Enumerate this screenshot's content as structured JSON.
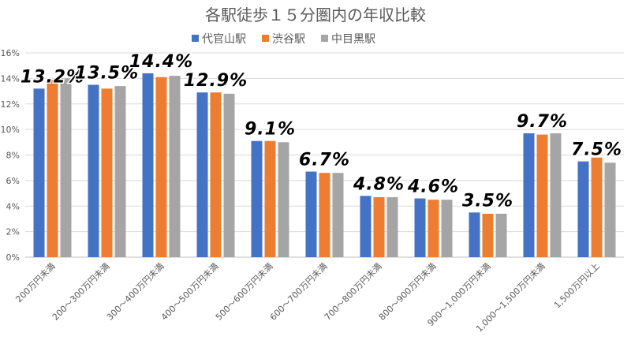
{
  "chart_data": {
    "type": "bar",
    "title": "各駅徒歩１５分圏内の年収比較",
    "xlabel": "",
    "ylabel": "",
    "ylim": [
      0,
      16
    ],
    "yticks": [
      "0%",
      "2%",
      "4%",
      "6%",
      "8%",
      "10%",
      "12%",
      "14%",
      "16%"
    ],
    "grid": true,
    "legend_position": "top",
    "categories": [
      "200万円未満",
      "200～300万円未満",
      "300～400万円未満",
      "400～500万円未満",
      "500～600万円未満",
      "600～700万円未満",
      "700～800万円未満",
      "800～900万円未満",
      "900～1,000万円未満",
      "1,000～1,500万円未満",
      "1,500万円以上"
    ],
    "series": [
      {
        "name": "代官山駅",
        "color": "#4472C4",
        "values": [
          13.2,
          13.5,
          14.4,
          12.9,
          9.1,
          6.7,
          4.8,
          4.6,
          3.5,
          9.7,
          7.5
        ]
      },
      {
        "name": "渋谷駅",
        "color": "#ED7D31",
        "values": [
          13.9,
          13.2,
          14.1,
          12.9,
          9.1,
          6.6,
          4.7,
          4.5,
          3.4,
          9.6,
          7.8
        ]
      },
      {
        "name": "中目黒駅",
        "color": "#A5A5A5",
        "values": [
          14.0,
          13.4,
          14.2,
          12.8,
          9.0,
          6.6,
          4.7,
          4.5,
          3.4,
          9.7,
          7.4
        ]
      }
    ],
    "data_labels": [
      "13.2%",
      "13.5%",
      "14.4%",
      "12.9%",
      "9.1%",
      "6.7%",
      "4.8%",
      "4.6%",
      "3.5%",
      "9.7%",
      "7.5%"
    ]
  }
}
